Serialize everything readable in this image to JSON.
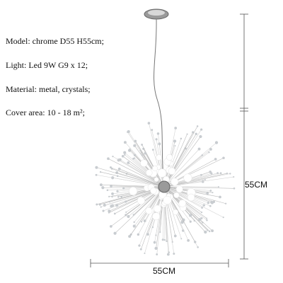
{
  "specs": [
    "Model: chrome D55 H55cm;",
    "Light: Led 9W G9 x 12;",
    "Material: metal, crystals;",
    "Cover area: 10 - 18 m²;"
  ],
  "height_label": "55CM",
  "width_label": "55CM"
}
